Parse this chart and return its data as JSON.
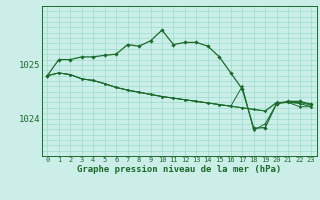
{
  "background_color": "#cceee8",
  "grid_color": "#99ddcc",
  "line_color": "#1a6b2a",
  "xlabel": "Graphe pression niveau de la mer (hPa)",
  "ylim": [
    1023.3,
    1026.1
  ],
  "xlim": [
    -0.5,
    23.5
  ],
  "yticks": [
    1024,
    1025
  ],
  "xticks": [
    0,
    1,
    2,
    3,
    4,
    5,
    6,
    7,
    8,
    9,
    10,
    11,
    12,
    13,
    14,
    15,
    16,
    17,
    18,
    19,
    20,
    21,
    22,
    23
  ],
  "series1": [
    1024.8,
    1025.1,
    1025.1,
    1025.15,
    1025.15,
    1025.18,
    1025.2,
    1025.38,
    1025.35,
    1025.45,
    1025.65,
    1025.38,
    1025.42,
    1025.42,
    1025.35,
    1025.15,
    1024.85,
    1024.55,
    1023.82,
    1023.83,
    1024.28,
    1024.32,
    1024.32,
    1024.27
  ],
  "series2": [
    1024.8,
    1024.85,
    1024.82,
    1024.74,
    1024.71,
    1024.65,
    1024.58,
    1024.53,
    1024.49,
    1024.45,
    1024.41,
    1024.38,
    1024.35,
    1024.32,
    1024.29,
    1024.26,
    1024.23,
    1024.2,
    1024.17,
    1024.14,
    1024.3,
    1024.3,
    1024.3,
    1024.25
  ],
  "series3": [
    1024.8,
    1024.85,
    1024.82,
    1024.74,
    1024.71,
    1024.65,
    1024.58,
    1024.53,
    1024.49,
    1024.45,
    1024.41,
    1024.38,
    1024.35,
    1024.32,
    1024.29,
    1024.26,
    1024.23,
    1024.2,
    1024.17,
    1024.14,
    1024.3,
    1024.3,
    1024.28,
    1024.22
  ],
  "series4": [
    1024.8,
    1024.85,
    1024.82,
    1024.74,
    1024.71,
    1024.65,
    1024.58,
    1024.53,
    1024.49,
    1024.45,
    1024.41,
    1024.38,
    1024.35,
    1024.32,
    1024.29,
    1024.26,
    1024.23,
    1024.6,
    1023.78,
    1023.9,
    1024.28,
    1024.3,
    1024.22,
    1024.22
  ]
}
